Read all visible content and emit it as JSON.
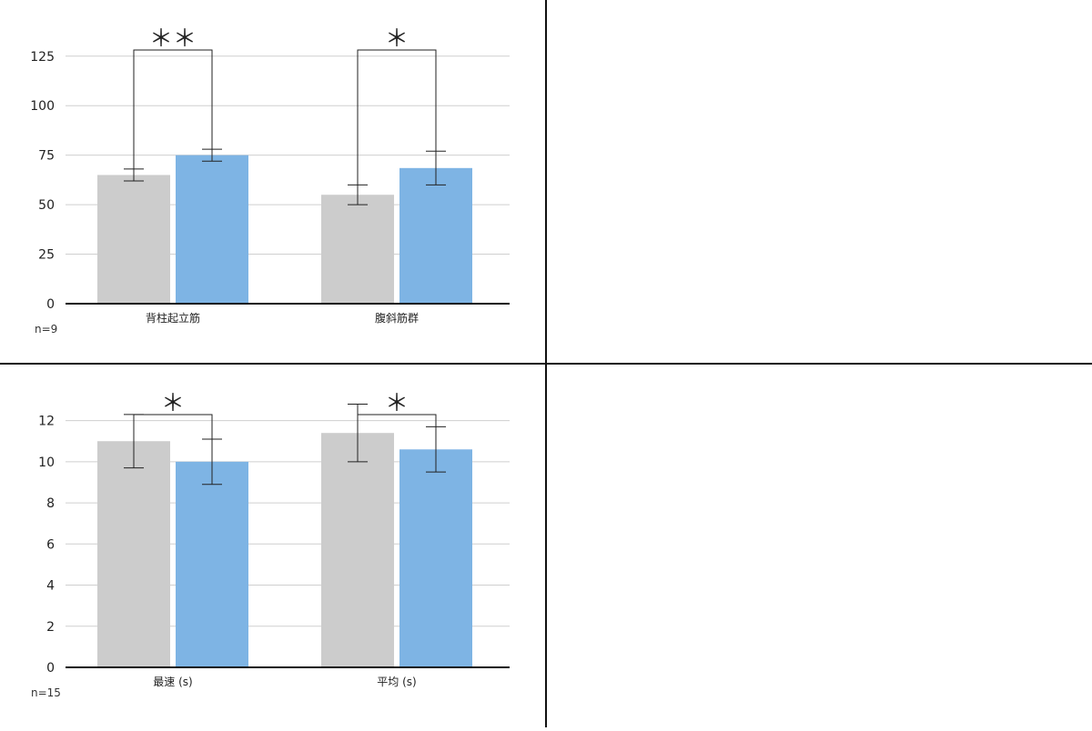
{
  "colors": {
    "bar_before": "#cccccc",
    "bar_after": "#7eb4e4",
    "grid": "#cfcfcf",
    "axis": "#111111",
    "error": "#222222"
  },
  "chart_data": [
    {
      "type": "bar",
      "categories": [
        "背柱起立筋",
        "腹斜筋群"
      ],
      "series": [
        {
          "values": [
            65,
            55
          ],
          "errors": [
            3,
            5
          ]
        },
        {
          "values": [
            75,
            68.5
          ],
          "errors": [
            3,
            8.5
          ]
        }
      ],
      "ylim": [
        0,
        135
      ],
      "yticks": [
        0,
        25,
        50,
        75,
        100,
        125
      ],
      "significance": [
        "＊＊",
        "＊"
      ],
      "note": "n=9",
      "grid": true
    },
    {
      "type": "bar",
      "categories": [
        "最速 (s)",
        "平均 (s)"
      ],
      "series": [
        {
          "values": [
            11.0,
            11.4
          ],
          "errors": [
            1.3,
            1.4
          ]
        },
        {
          "values": [
            10.0,
            10.6
          ],
          "errors": [
            1.1,
            1.1
          ]
        }
      ],
      "ylim": [
        0,
        13
      ],
      "yticks": [
        0,
        2,
        4,
        6,
        8,
        10,
        12
      ],
      "significance": [
        "＊",
        "＊"
      ],
      "note": "n=15",
      "grid": true
    }
  ],
  "pressure_scale": {
    "colors": [
      "#0000c8",
      "#0028e0",
      "#0050f0",
      "#0078f8",
      "#00a0f0",
      "#00c0d0",
      "#00d8a0",
      "#00e070",
      "#20e040",
      "#50e820",
      "#80f000",
      "#a8f000",
      "#d0f000",
      "#f0e800",
      "#f8c800",
      "#f8a000",
      "#f87800",
      "#f05000",
      "#e83000",
      "#e01010",
      "#d80000"
    ]
  }
}
